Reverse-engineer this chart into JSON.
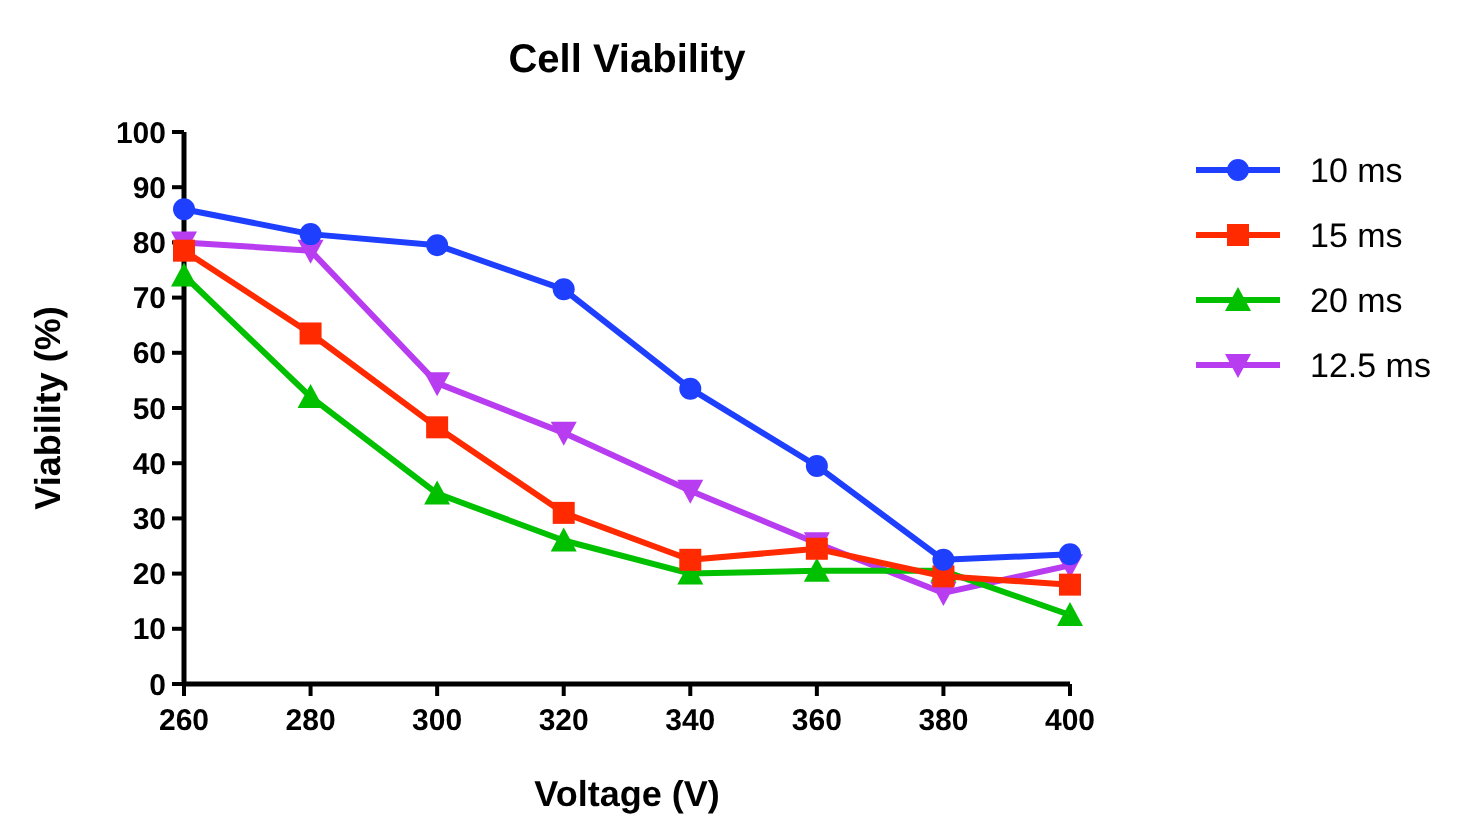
{
  "chart_data": {
    "type": "line",
    "title": "Cell Viability",
    "xlabel": "Voltage (V)",
    "ylabel": "Viability (%)",
    "x": [
      260,
      280,
      300,
      320,
      340,
      360,
      380,
      400
    ],
    "xlim": [
      260,
      400
    ],
    "xticks": [
      260,
      280,
      300,
      320,
      340,
      360,
      380,
      400
    ],
    "ylim": [
      0,
      100
    ],
    "yticks": [
      0,
      10,
      20,
      30,
      40,
      50,
      60,
      70,
      80,
      90,
      100
    ],
    "grid": false,
    "legend": "right",
    "line_style": "solid",
    "series": [
      {
        "name": "10 ms",
        "color": "#1f3fff",
        "marker": "circle",
        "values": [
          86,
          81.5,
          79.5,
          71.5,
          53.5,
          39.5,
          22.5,
          23.5
        ]
      },
      {
        "name": "15 ms",
        "color": "#ff2a00",
        "marker": "square",
        "values": [
          78.5,
          63.5,
          46.5,
          31,
          22.5,
          24.5,
          19.5,
          18
        ]
      },
      {
        "name": "20 ms",
        "color": "#00c000",
        "marker": "triangle",
        "values": [
          74,
          52,
          34.5,
          26,
          20,
          20.5,
          20.5,
          12.5
        ]
      },
      {
        "name": "12.5 ms",
        "color": "#b83cf0",
        "marker": "triangle-down",
        "values": [
          80,
          78.5,
          54.5,
          45.5,
          35,
          25.5,
          16.5,
          21.5
        ]
      }
    ]
  }
}
